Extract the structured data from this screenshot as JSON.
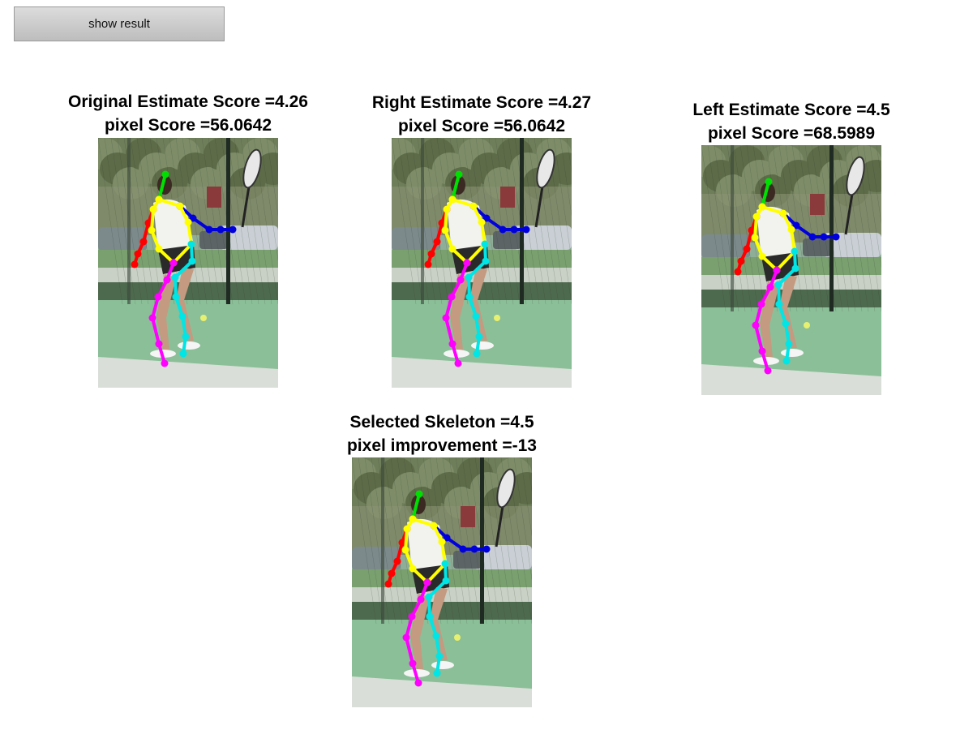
{
  "toolbar": {
    "show_result_label": "show result"
  },
  "skeleton_colors": {
    "head": "#00e000",
    "torso": "#ffff00",
    "right_arm": "#ff0000",
    "left_arm": "#0000dd",
    "right_leg": "#ff00ff",
    "left_leg": "#00e5e5"
  },
  "panels": [
    {
      "line1": "Original Estimate Score =4.26",
      "line2": "pixel Score =56.0642"
    },
    {
      "line1": "Right Estimate Score =4.27",
      "line2": "pixel Score =56.0642"
    },
    {
      "line1": "Left Estimate Score =4.5",
      "line2": "pixel Score =68.5989"
    },
    {
      "line1": "Selected Skeleton =4.5",
      "line2": "pixel improvement =-13"
    }
  ]
}
